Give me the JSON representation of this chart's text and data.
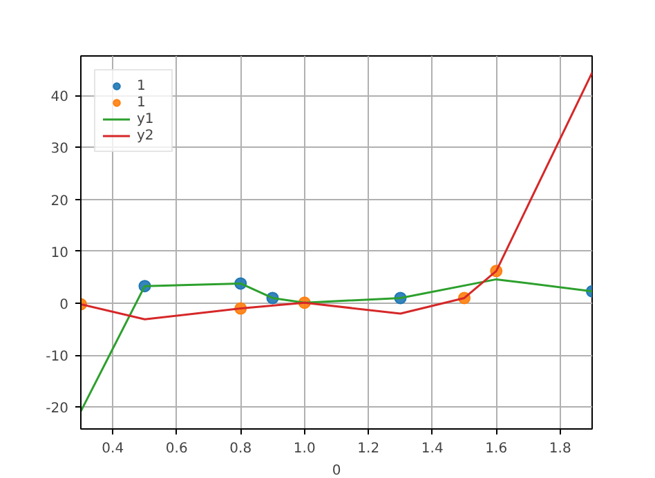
{
  "chart_data": {
    "type": "line",
    "xlabel": "0",
    "xlim": [
      0.3,
      1.9
    ],
    "xticks": [
      {
        "value": 0.4,
        "label": "0.4"
      },
      {
        "value": 0.6,
        "label": "0.6"
      },
      {
        "value": 0.8,
        "label": "0.8"
      },
      {
        "value": 1.0,
        "label": "1.0"
      },
      {
        "value": 1.2,
        "label": "1.2"
      },
      {
        "value": 1.4,
        "label": "1.4"
      },
      {
        "value": 1.6,
        "label": "1.6"
      },
      {
        "value": 1.8,
        "label": "1.8"
      }
    ],
    "ylim": [
      -24.2,
      47.6
    ],
    "yticks": [
      -20,
      -10,
      0,
      10,
      20,
      30,
      40
    ],
    "grid": true,
    "legend": "top left",
    "marker": "none",
    "series": [
      {
        "name": "1",
        "type": "scatter",
        "marker": "circle",
        "color": "#1f77b4",
        "x": [
          0.5,
          0.8,
          0.9,
          1.3,
          1.9
        ],
        "values": [
          3.3,
          3.8,
          1.0,
          1.0,
          2.3
        ]
      },
      {
        "name": "1",
        "type": "scatter",
        "marker": "circle",
        "color": "#ff7f0e",
        "x": [
          0.3,
          0.8,
          1.0,
          1.5,
          1.6
        ],
        "values": [
          -0.2,
          -1.0,
          0.1,
          1.0,
          6.2
        ]
      },
      {
        "name": "y1",
        "color": "#2ca02c",
        "x": [
          0.3,
          0.5,
          0.8,
          0.9,
          1.0,
          1.3,
          1.6,
          1.9
        ],
        "values": [
          -20.8,
          3.3,
          3.8,
          1.0,
          0.1,
          1.0,
          4.6,
          2.3
        ]
      },
      {
        "name": "y2",
        "color": "#d62728",
        "x": [
          0.3,
          0.5,
          0.8,
          1.0,
          1.3,
          1.5,
          1.6,
          1.9
        ],
        "values": [
          -0.2,
          -3.1,
          -1.0,
          0.1,
          -2.0,
          1.0,
          6.2,
          44.4
        ]
      }
    ]
  }
}
